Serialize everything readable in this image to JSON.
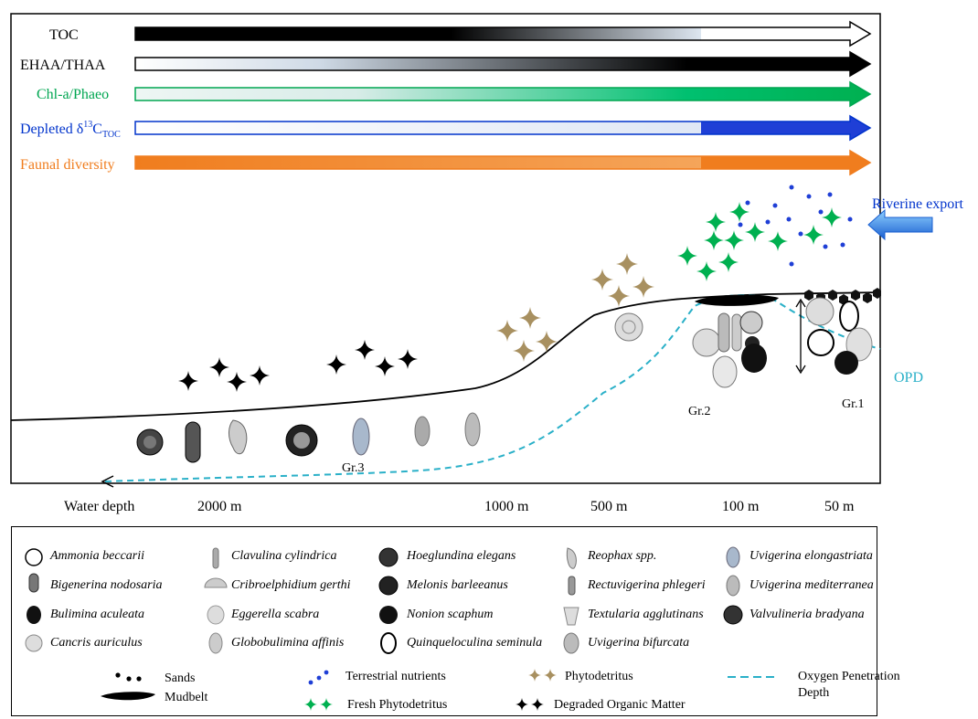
{
  "indicators": [
    {
      "label": "TOC",
      "color": "#000000"
    },
    {
      "label": "EHAA/THAA",
      "color": "#000000"
    },
    {
      "label": "Chl-a/Phaeo",
      "color": "#00a651"
    },
    {
      "label_main": "Depleted δ",
      "label_sup": "13",
      "label_c": "C",
      "label_sub": "TOC",
      "color": "#0033cc"
    },
    {
      "label": "Faunal diversity",
      "color": "#f07d1e"
    }
  ],
  "riverine_export": "Riverine export",
  "opd_label": "OPD",
  "groups": [
    "Gr.1",
    "Gr.2",
    "Gr.3"
  ],
  "water_depth_label": "Water depth",
  "depths": [
    "2000 m",
    "1000 m",
    "500 m",
    "100 m",
    "50 m"
  ],
  "species": [
    [
      "Ammonia beccarii",
      "Clavulina cylindrica",
      "Hoeglundina elegans",
      "Reophax spp.",
      "Uvigerina elongastriata"
    ],
    [
      "Bigenerina nodosaria",
      "Cribroelphidium gerthi",
      "Melonis barleeanus",
      "Rectuvigerina phlegeri",
      "Uvigerina mediterranea"
    ],
    [
      "Bulimina aculeata",
      "Eggerella scabra",
      "Nonion scaphum",
      "Textularia agglutinans",
      "Valvulineria bradyana"
    ],
    [
      "Cancris auriculus",
      "Globobulimina affinis",
      "Quinqueloculina seminula",
      "Uvigerina bifurcata"
    ]
  ],
  "symbols": {
    "sands": "Sands",
    "mudbelt": "Mudbelt",
    "terrestrial": "Terrestrial nutrients",
    "fresh": "Fresh Phytodetritus",
    "phyto": "Phytodetritus",
    "degraded": "Degraded Organic Matter",
    "opd_line1": "Oxygen Penetration",
    "opd_line2": "Depth"
  },
  "colors": {
    "gold": "#a89060",
    "green": "#00b050",
    "blue": "#1f3fd6",
    "cyan": "#2ab0c8"
  }
}
